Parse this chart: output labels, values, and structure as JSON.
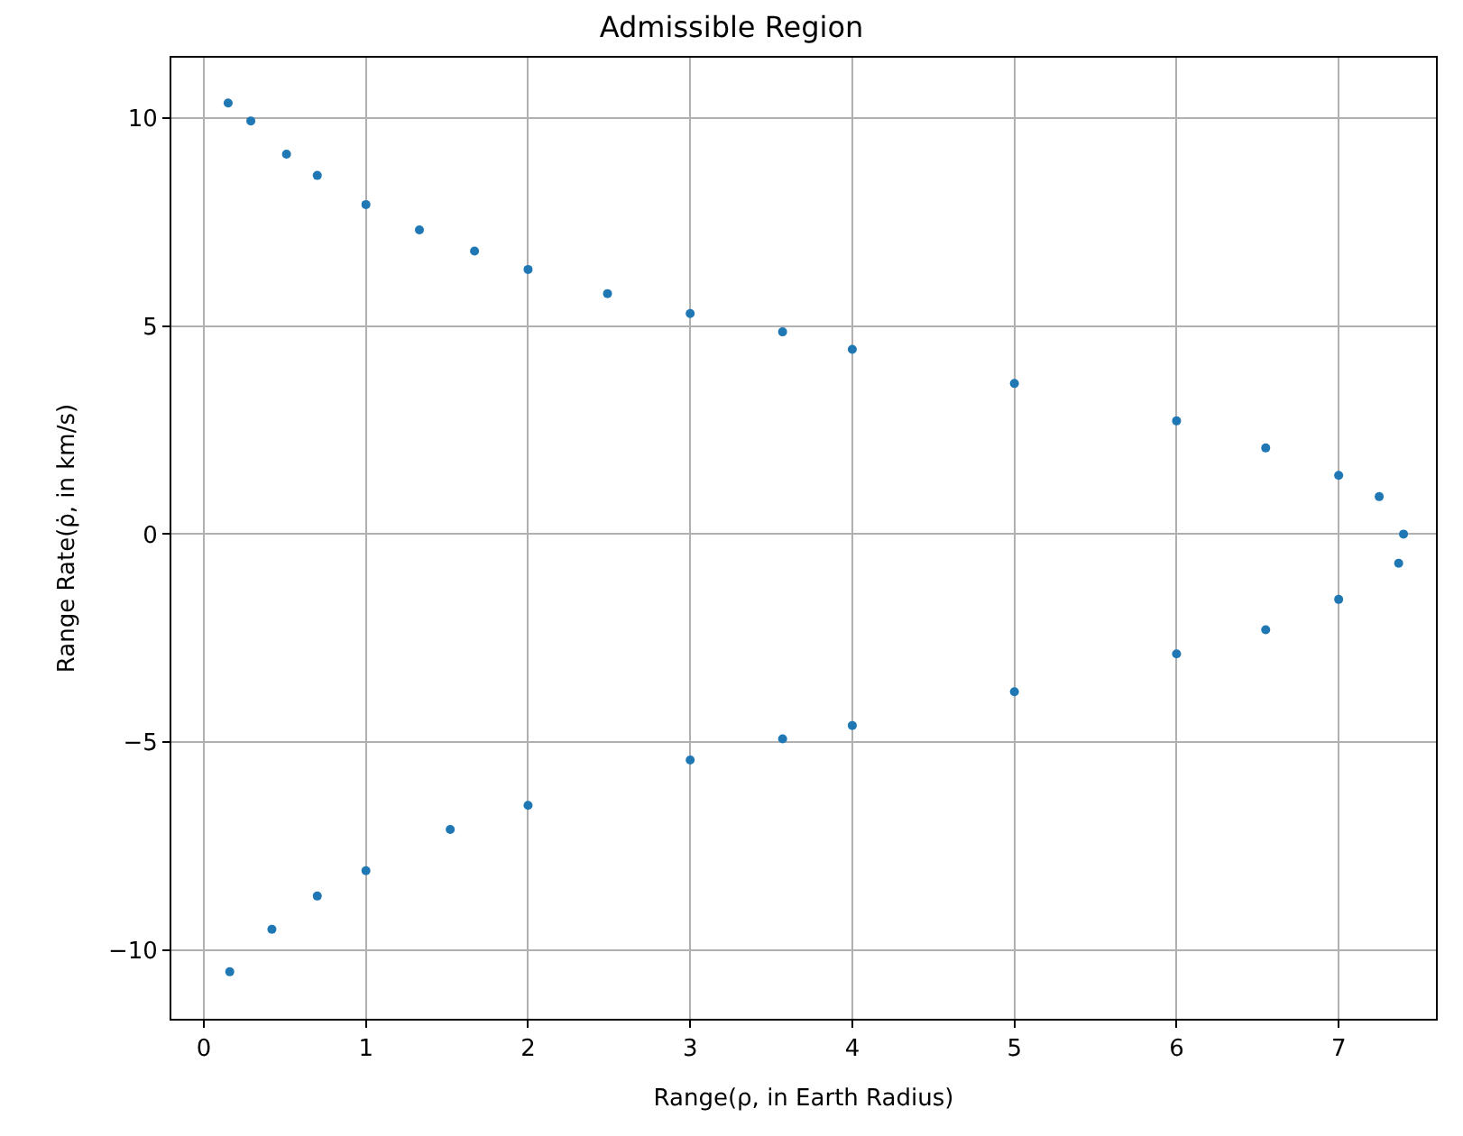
{
  "chart_data": {
    "type": "scatter",
    "title": "Admissible Region",
    "xlabel": "Range(ρ, in Earth Radius)",
    "ylabel": "Range Rate(ρ̇, in km/s)",
    "x": [
      0.15,
      0.29,
      0.51,
      0.7,
      1.0,
      1.33,
      1.67,
      2.0,
      2.49,
      3.0,
      3.57,
      4.0,
      5.0,
      6.0,
      6.55,
      7.0,
      7.25,
      7.4,
      7.37,
      7.0,
      6.55,
      6.0,
      5.0,
      4.0,
      3.57,
      3.0,
      2.0,
      1.52,
      1.0,
      0.7,
      0.42,
      0.16
    ],
    "values": [
      10.36,
      9.93,
      9.13,
      8.62,
      7.92,
      7.31,
      6.8,
      6.36,
      5.78,
      5.3,
      4.86,
      4.44,
      3.62,
      2.72,
      2.07,
      1.41,
      0.9,
      0.0,
      -0.7,
      -1.57,
      -2.3,
      -2.88,
      -3.79,
      -4.6,
      -4.92,
      -5.43,
      -6.52,
      -7.1,
      -8.09,
      -8.7,
      -9.5,
      -10.52
    ],
    "color": "#1f77b4",
    "marker": "circle",
    "xlim": [
      -0.2,
      7.6
    ],
    "ylim": [
      -11.65,
      11.45
    ],
    "xticks": [
      0,
      1,
      2,
      3,
      4,
      5,
      6,
      7
    ],
    "yticks": [
      {
        "value": -10,
        "label": "−10"
      },
      {
        "value": -5,
        "label": "−5"
      },
      0,
      5,
      10
    ],
    "grid": true
  }
}
